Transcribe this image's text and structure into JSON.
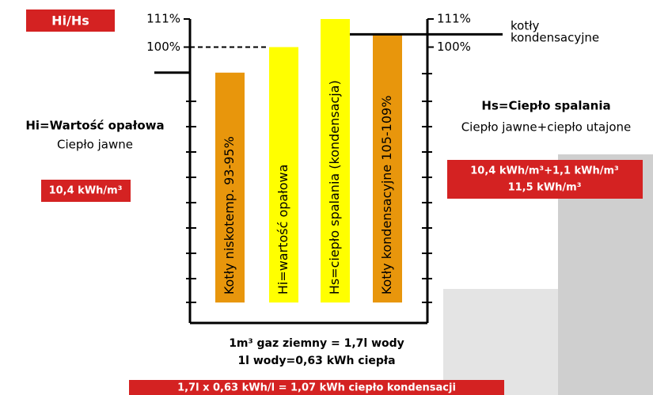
{
  "chart_data": {
    "type": "bar",
    "badge": "Hi/Hs",
    "categories": [
      "Kotły niskotemp.  93-95%",
      "Hi=wartość opałowa",
      "Hs=ciepło spalania (kondensacja)",
      "Kotły kondensacyjne 105-109%"
    ],
    "values": [
      90,
      100,
      111,
      105
    ],
    "colors": [
      "#e8960c",
      "#ffff00",
      "#ffff00",
      "#e8960c"
    ],
    "ylim": [
      -8,
      111
    ],
    "yticks": [
      {
        "value": 100,
        "label": "100%"
      },
      {
        "value": 111,
        "label": "111%"
      }
    ],
    "y2lim": [
      -8,
      111
    ],
    "y2ticks": [
      {
        "value": 100,
        "label": "100%"
      },
      {
        "value": 111,
        "label": "111%"
      }
    ],
    "right_axis_note": [
      "kotły",
      "kondensacyjne"
    ],
    "left_title": "Hi=Wartość opałowa",
    "left_subtitle": "Ciepło jawne",
    "left_value": "10,4 kWh/m³",
    "right_title": "Hs=Ciepło spalania",
    "right_subtitle": "Ciepło jawne+ciepło utajone",
    "right_value": [
      "10,4 kWh/m³+1,1 kWh/m³",
      "11,5 kWh/m³"
    ],
    "footnotes": [
      "1m³ gaz ziemny = 1,7l wody",
      "1l wody=0,63 kWh ciepła"
    ],
    "bottom_box": "1,7l  x  0,63 kWh/l = 1,07 kWh ciepło kondensacji"
  }
}
